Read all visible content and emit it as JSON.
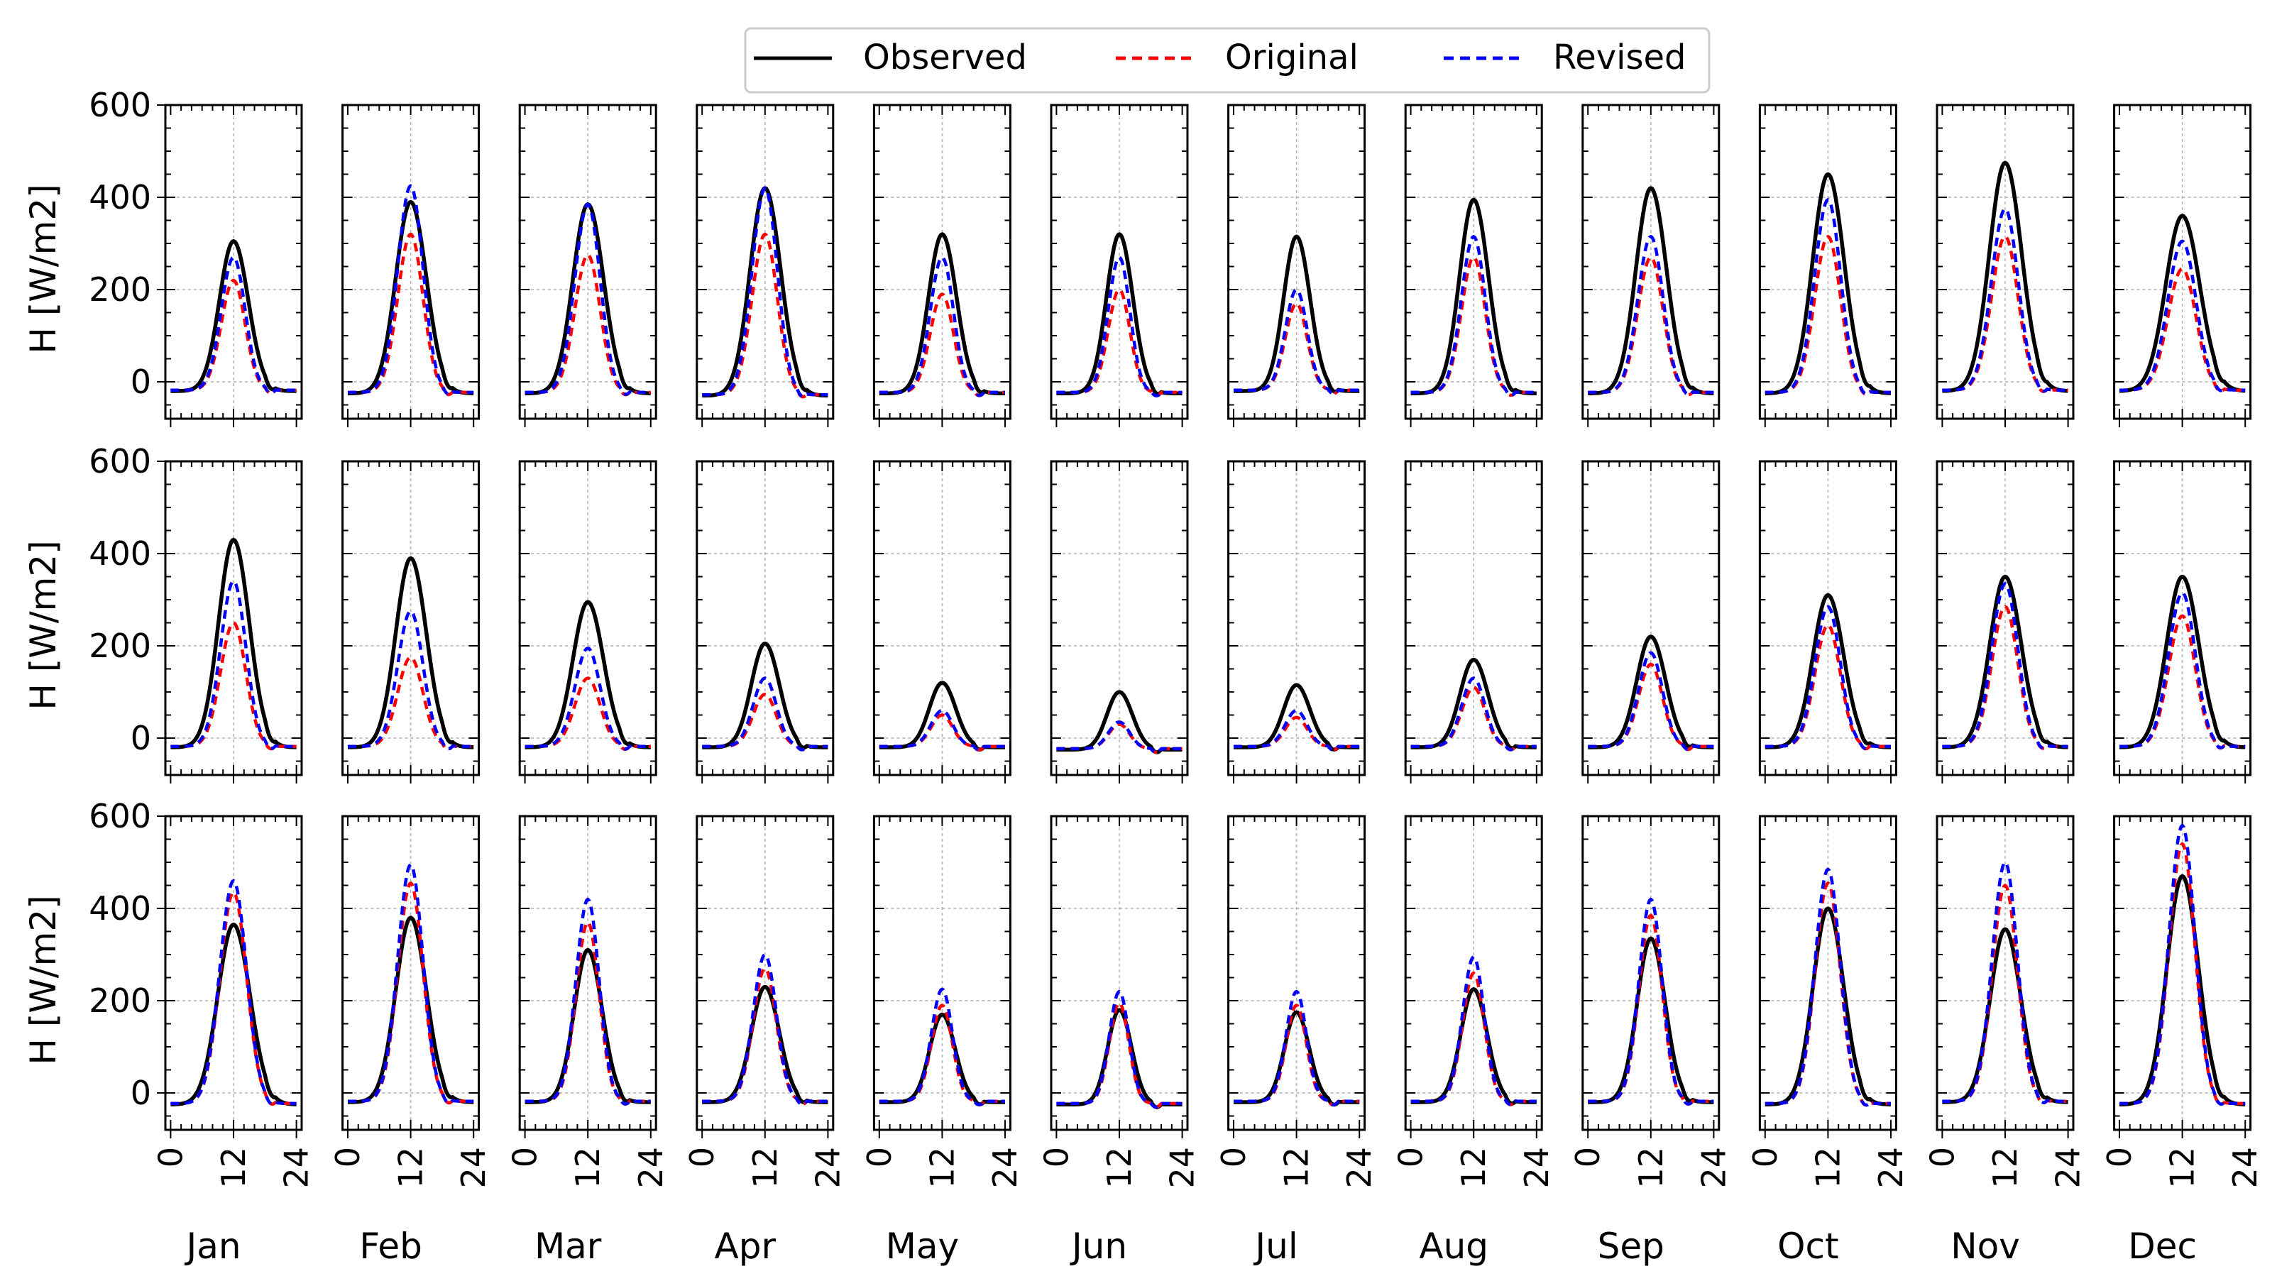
{
  "chart_data": {
    "type": "line",
    "layout": "small-multiples grid, 3 rows x 12 columns",
    "legend": {
      "placement": "top-center",
      "entries": [
        {
          "name": "Observed",
          "color": "#000000",
          "style": "solid"
        },
        {
          "name": "Original",
          "color": "#ff0000",
          "style": "dashed"
        },
        {
          "name": "Revised",
          "color": "#0000ff",
          "style": "dashed"
        }
      ]
    },
    "ylabel": "H [W/m2]",
    "ylim": [
      -80,
      600
    ],
    "yticks": [
      "0",
      "200",
      "400",
      "600"
    ],
    "ytick_values": [
      0,
      200,
      400,
      600
    ],
    "xlim": [
      -1,
      25
    ],
    "xticks": [
      "0",
      "12",
      "24"
    ],
    "xtick_values": [
      0,
      12,
      24
    ],
    "grid": "dotted, at x=12 and y=0,200,400,600",
    "colors": {
      "observed": "#000000",
      "original": "#ff0000",
      "revised": "#0000ff",
      "grid": "#b0b0b0"
    },
    "months": [
      "Jan",
      "Feb",
      "Mar",
      "Apr",
      "May",
      "Jun",
      "Jul",
      "Aug",
      "Sep",
      "Oct",
      "Nov",
      "Dec"
    ],
    "panel_params_note": "For each row and month: [observed_peak, original_peak, revised_peak, baseline_value, half_width_hours]; diurnal curves are bell shapes centred on hour 12.",
    "rows": [
      {
        "name": "row-1",
        "peaks": [
          [
            305,
            220,
            270,
            -20,
            3.4
          ],
          [
            390,
            320,
            425,
            -25,
            3.6
          ],
          [
            385,
            275,
            385,
            -25,
            3.6
          ],
          [
            420,
            320,
            420,
            -30,
            3.6
          ],
          [
            320,
            190,
            270,
            -25,
            3.3
          ],
          [
            320,
            200,
            270,
            -25,
            3.1
          ],
          [
            315,
            170,
            200,
            -20,
            3.1
          ],
          [
            395,
            270,
            315,
            -25,
            3.4
          ],
          [
            420,
            270,
            315,
            -25,
            3.6
          ],
          [
            450,
            315,
            395,
            -25,
            3.7
          ],
          [
            475,
            315,
            375,
            -20,
            3.8
          ],
          [
            360,
            245,
            305,
            -20,
            4.0
          ]
        ]
      },
      {
        "name": "row-2",
        "peaks": [
          [
            430,
            250,
            340,
            -20,
            3.6
          ],
          [
            390,
            175,
            275,
            -20,
            3.6
          ],
          [
            295,
            130,
            195,
            -20,
            3.6
          ],
          [
            205,
            95,
            130,
            -20,
            3.3
          ],
          [
            120,
            50,
            60,
            -20,
            3.1
          ],
          [
            100,
            30,
            35,
            -25,
            3.0
          ],
          [
            115,
            45,
            60,
            -20,
            3.1
          ],
          [
            170,
            110,
            130,
            -20,
            3.3
          ],
          [
            220,
            160,
            185,
            -20,
            3.4
          ],
          [
            310,
            245,
            285,
            -20,
            3.6
          ],
          [
            350,
            285,
            335,
            -20,
            3.7
          ],
          [
            350,
            265,
            315,
            -20,
            3.8
          ]
        ]
      },
      {
        "name": "row-3",
        "peaks": [
          [
            365,
            435,
            460,
            -25,
            3.8
          ],
          [
            380,
            455,
            495,
            -20,
            3.6
          ],
          [
            310,
            370,
            420,
            -20,
            3.3
          ],
          [
            230,
            270,
            300,
            -20,
            3.3
          ],
          [
            170,
            190,
            225,
            -20,
            3.0
          ],
          [
            180,
            195,
            220,
            -25,
            2.8
          ],
          [
            175,
            190,
            220,
            -20,
            2.9
          ],
          [
            225,
            260,
            295,
            -20,
            3.1
          ],
          [
            335,
            385,
            420,
            -20,
            3.3
          ],
          [
            400,
            455,
            485,
            -25,
            3.6
          ],
          [
            355,
            450,
            500,
            -20,
            3.6
          ],
          [
            470,
            540,
            580,
            -25,
            3.7
          ]
        ]
      }
    ]
  }
}
